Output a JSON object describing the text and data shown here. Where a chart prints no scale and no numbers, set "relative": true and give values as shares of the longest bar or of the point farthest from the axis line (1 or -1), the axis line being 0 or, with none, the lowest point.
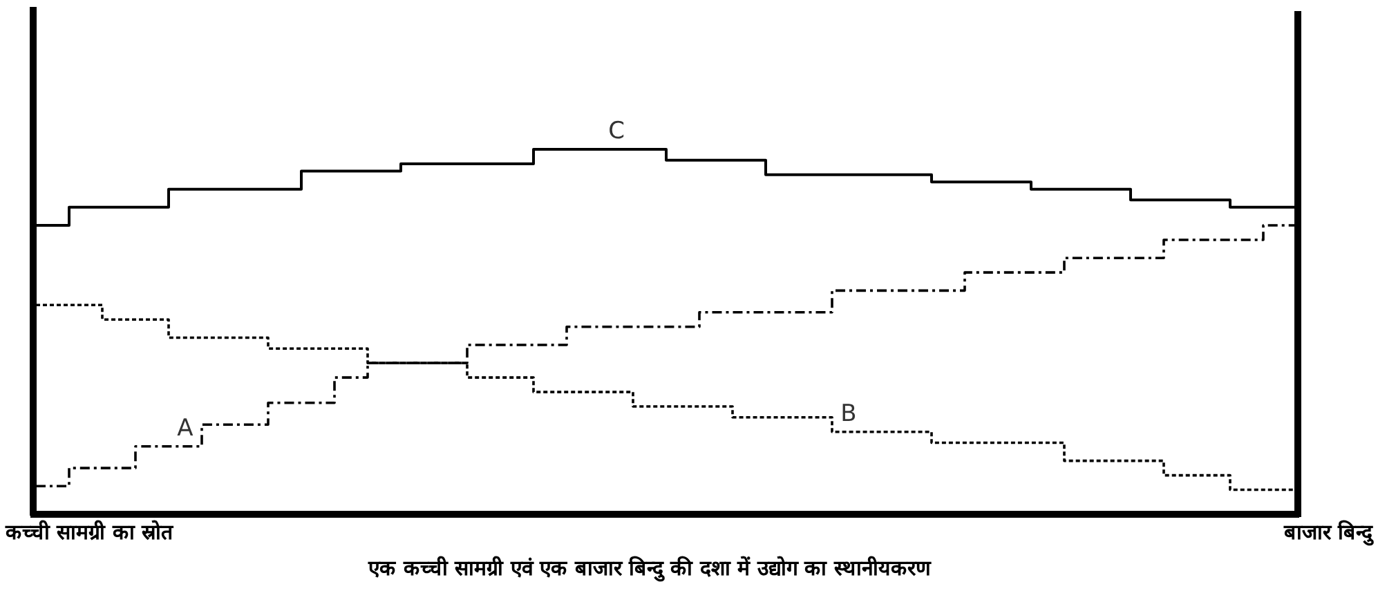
{
  "chart_data": {
    "type": "step",
    "title": "एक कच्ची सामग्री एवं एक बाजार बिन्दु की दशा में उद्योग का स्थानीयकरण",
    "relative": true,
    "annotations": [
      "कच्ची सामग्री का स्रोत",
      "बाजार बिन्दु"
    ],
    "categories": [
      null,
      null,
      null,
      null,
      null,
      null,
      null,
      null,
      null,
      null,
      null,
      null,
      null,
      null,
      null,
      null,
      null,
      null,
      null,
      null,
      null,
      null,
      null,
      null,
      null,
      null,
      null,
      null,
      null,
      null,
      null,
      null,
      null,
      null,
      null,
      null,
      null,
      null,
      null
    ],
    "series": [
      {
        "name": "C",
        "color": "#000000",
        "line_style": "solid",
        "values": [
          0.79,
          0.84,
          0.84,
          0.84,
          0.89,
          0.89,
          0.89,
          0.89,
          0.94,
          0.94,
          0.94,
          0.96,
          0.96,
          0.96,
          0.96,
          1.0,
          1.0,
          1.0,
          1.0,
          0.97,
          0.97,
          0.97,
          0.93,
          0.93,
          0.93,
          0.93,
          0.93,
          0.91,
          0.91,
          0.91,
          0.89,
          0.89,
          0.89,
          0.86,
          0.86,
          0.86,
          0.84,
          0.84,
          0.84
        ]
      },
      {
        "name": "A",
        "color": "#000000",
        "line_style": "dashed",
        "values": [
          0.07,
          0.12,
          0.12,
          0.18,
          0.18,
          0.24,
          0.24,
          0.3,
          0.3,
          0.37,
          0.41,
          0.41,
          0.41,
          0.46,
          0.46,
          0.46,
          0.51,
          0.51,
          0.51,
          0.51,
          0.55,
          0.55,
          0.55,
          0.55,
          0.61,
          0.61,
          0.61,
          0.61,
          0.66,
          0.66,
          0.66,
          0.7,
          0.7,
          0.7,
          0.75,
          0.75,
          0.75,
          0.79,
          0.79
        ]
      },
      {
        "name": "B",
        "color": "#000000",
        "line_style": "dotted",
        "values": [
          0.57,
          0.57,
          0.53,
          0.53,
          0.48,
          0.48,
          0.48,
          0.45,
          0.45,
          0.45,
          0.41,
          0.41,
          0.41,
          0.37,
          0.37,
          0.33,
          0.33,
          0.33,
          0.29,
          0.29,
          0.29,
          0.26,
          0.26,
          0.26,
          0.22,
          0.22,
          0.22,
          0.19,
          0.19,
          0.19,
          0.19,
          0.14,
          0.14,
          0.14,
          0.1,
          0.1,
          0.06,
          0.06,
          0.06
        ]
      }
    ]
  }
}
